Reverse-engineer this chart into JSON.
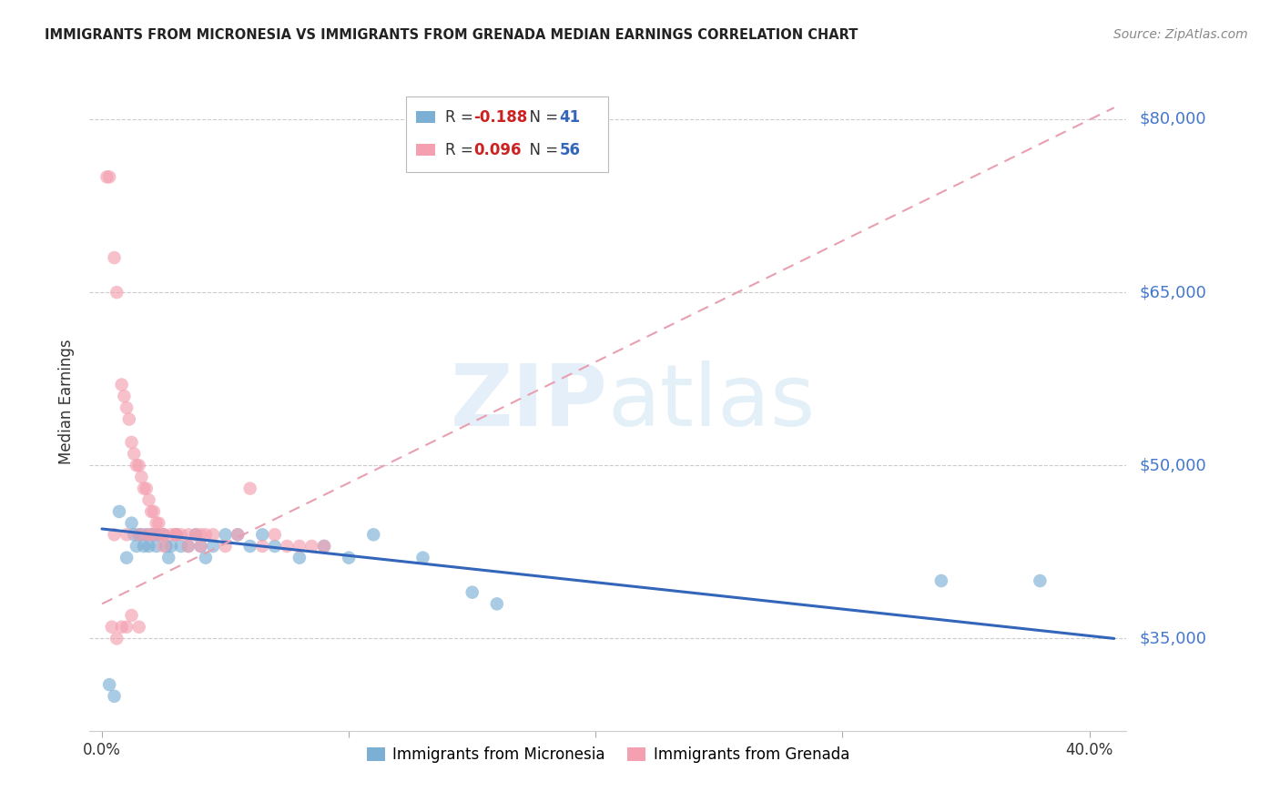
{
  "title": "IMMIGRANTS FROM MICRONESIA VS IMMIGRANTS FROM GRENADA MEDIAN EARNINGS CORRELATION CHART",
  "source": "Source: ZipAtlas.com",
  "ylabel": "Median Earnings",
  "xlabel_ticks": [
    "0.0%",
    "",
    "",
    "",
    "40.0%"
  ],
  "xlabel_vals": [
    0.0,
    0.1,
    0.2,
    0.3,
    0.4
  ],
  "ytick_labels": [
    "$35,000",
    "$50,000",
    "$65,000",
    "$80,000"
  ],
  "ytick_vals": [
    35000,
    50000,
    65000,
    80000
  ],
  "ylim": [
    27000,
    84000
  ],
  "xlim": [
    -0.005,
    0.415
  ],
  "blue_color": "#7BAFD4",
  "pink_color": "#F4A0B0",
  "trend_blue_color": "#3366BB",
  "trend_dashed_color": "#E8A0B0",
  "legend_label_blue": "Immigrants from Micronesia",
  "legend_label_pink": "Immigrants from Grenada",
  "watermark_zip": "ZIP",
  "watermark_atlas": "atlas",
  "blue_trend_x": [
    0.0,
    0.41
  ],
  "blue_trend_y": [
    44500,
    35000
  ],
  "pink_trend_x": [
    0.0,
    0.41
  ],
  "pink_trend_y": [
    38000,
    81000
  ],
  "blue_x": [
    0.003,
    0.005,
    0.007,
    0.01,
    0.012,
    0.013,
    0.014,
    0.015,
    0.016,
    0.017,
    0.018,
    0.019,
    0.02,
    0.021,
    0.022,
    0.023,
    0.025,
    0.026,
    0.027,
    0.028,
    0.03,
    0.032,
    0.035,
    0.038,
    0.04,
    0.042,
    0.045,
    0.05,
    0.055,
    0.06,
    0.065,
    0.07,
    0.08,
    0.09,
    0.1,
    0.11,
    0.13,
    0.15,
    0.16,
    0.34,
    0.38
  ],
  "blue_y": [
    31000,
    30000,
    46000,
    42000,
    45000,
    44000,
    43000,
    44000,
    44000,
    43000,
    44000,
    43000,
    44000,
    44000,
    43000,
    44000,
    44000,
    43000,
    42000,
    43000,
    44000,
    43000,
    43000,
    44000,
    43000,
    42000,
    43000,
    44000,
    44000,
    43000,
    44000,
    43000,
    42000,
    43000,
    42000,
    44000,
    42000,
    39000,
    38000,
    40000,
    40000
  ],
  "pink_x": [
    0.002,
    0.003,
    0.005,
    0.006,
    0.008,
    0.009,
    0.01,
    0.011,
    0.012,
    0.013,
    0.014,
    0.015,
    0.016,
    0.017,
    0.018,
    0.019,
    0.02,
    0.021,
    0.022,
    0.023,
    0.025,
    0.028,
    0.03,
    0.032,
    0.035,
    0.038,
    0.04,
    0.042,
    0.045,
    0.05,
    0.055,
    0.06,
    0.065,
    0.07,
    0.075,
    0.08,
    0.085,
    0.09,
    0.004,
    0.006,
    0.008,
    0.01,
    0.012,
    0.015,
    0.018,
    0.022,
    0.025,
    0.03,
    0.035,
    0.04,
    0.005,
    0.01,
    0.015,
    0.02,
    0.025,
    0.03
  ],
  "pink_y": [
    75000,
    75000,
    68000,
    65000,
    57000,
    56000,
    55000,
    54000,
    52000,
    51000,
    50000,
    50000,
    49000,
    48000,
    48000,
    47000,
    46000,
    46000,
    45000,
    45000,
    44000,
    44000,
    44000,
    44000,
    43000,
    44000,
    44000,
    44000,
    44000,
    43000,
    44000,
    48000,
    43000,
    44000,
    43000,
    43000,
    43000,
    43000,
    36000,
    35000,
    36000,
    36000,
    37000,
    36000,
    44000,
    44000,
    44000,
    44000,
    44000,
    43000,
    44000,
    44000,
    44000,
    44000,
    43000,
    44000
  ]
}
